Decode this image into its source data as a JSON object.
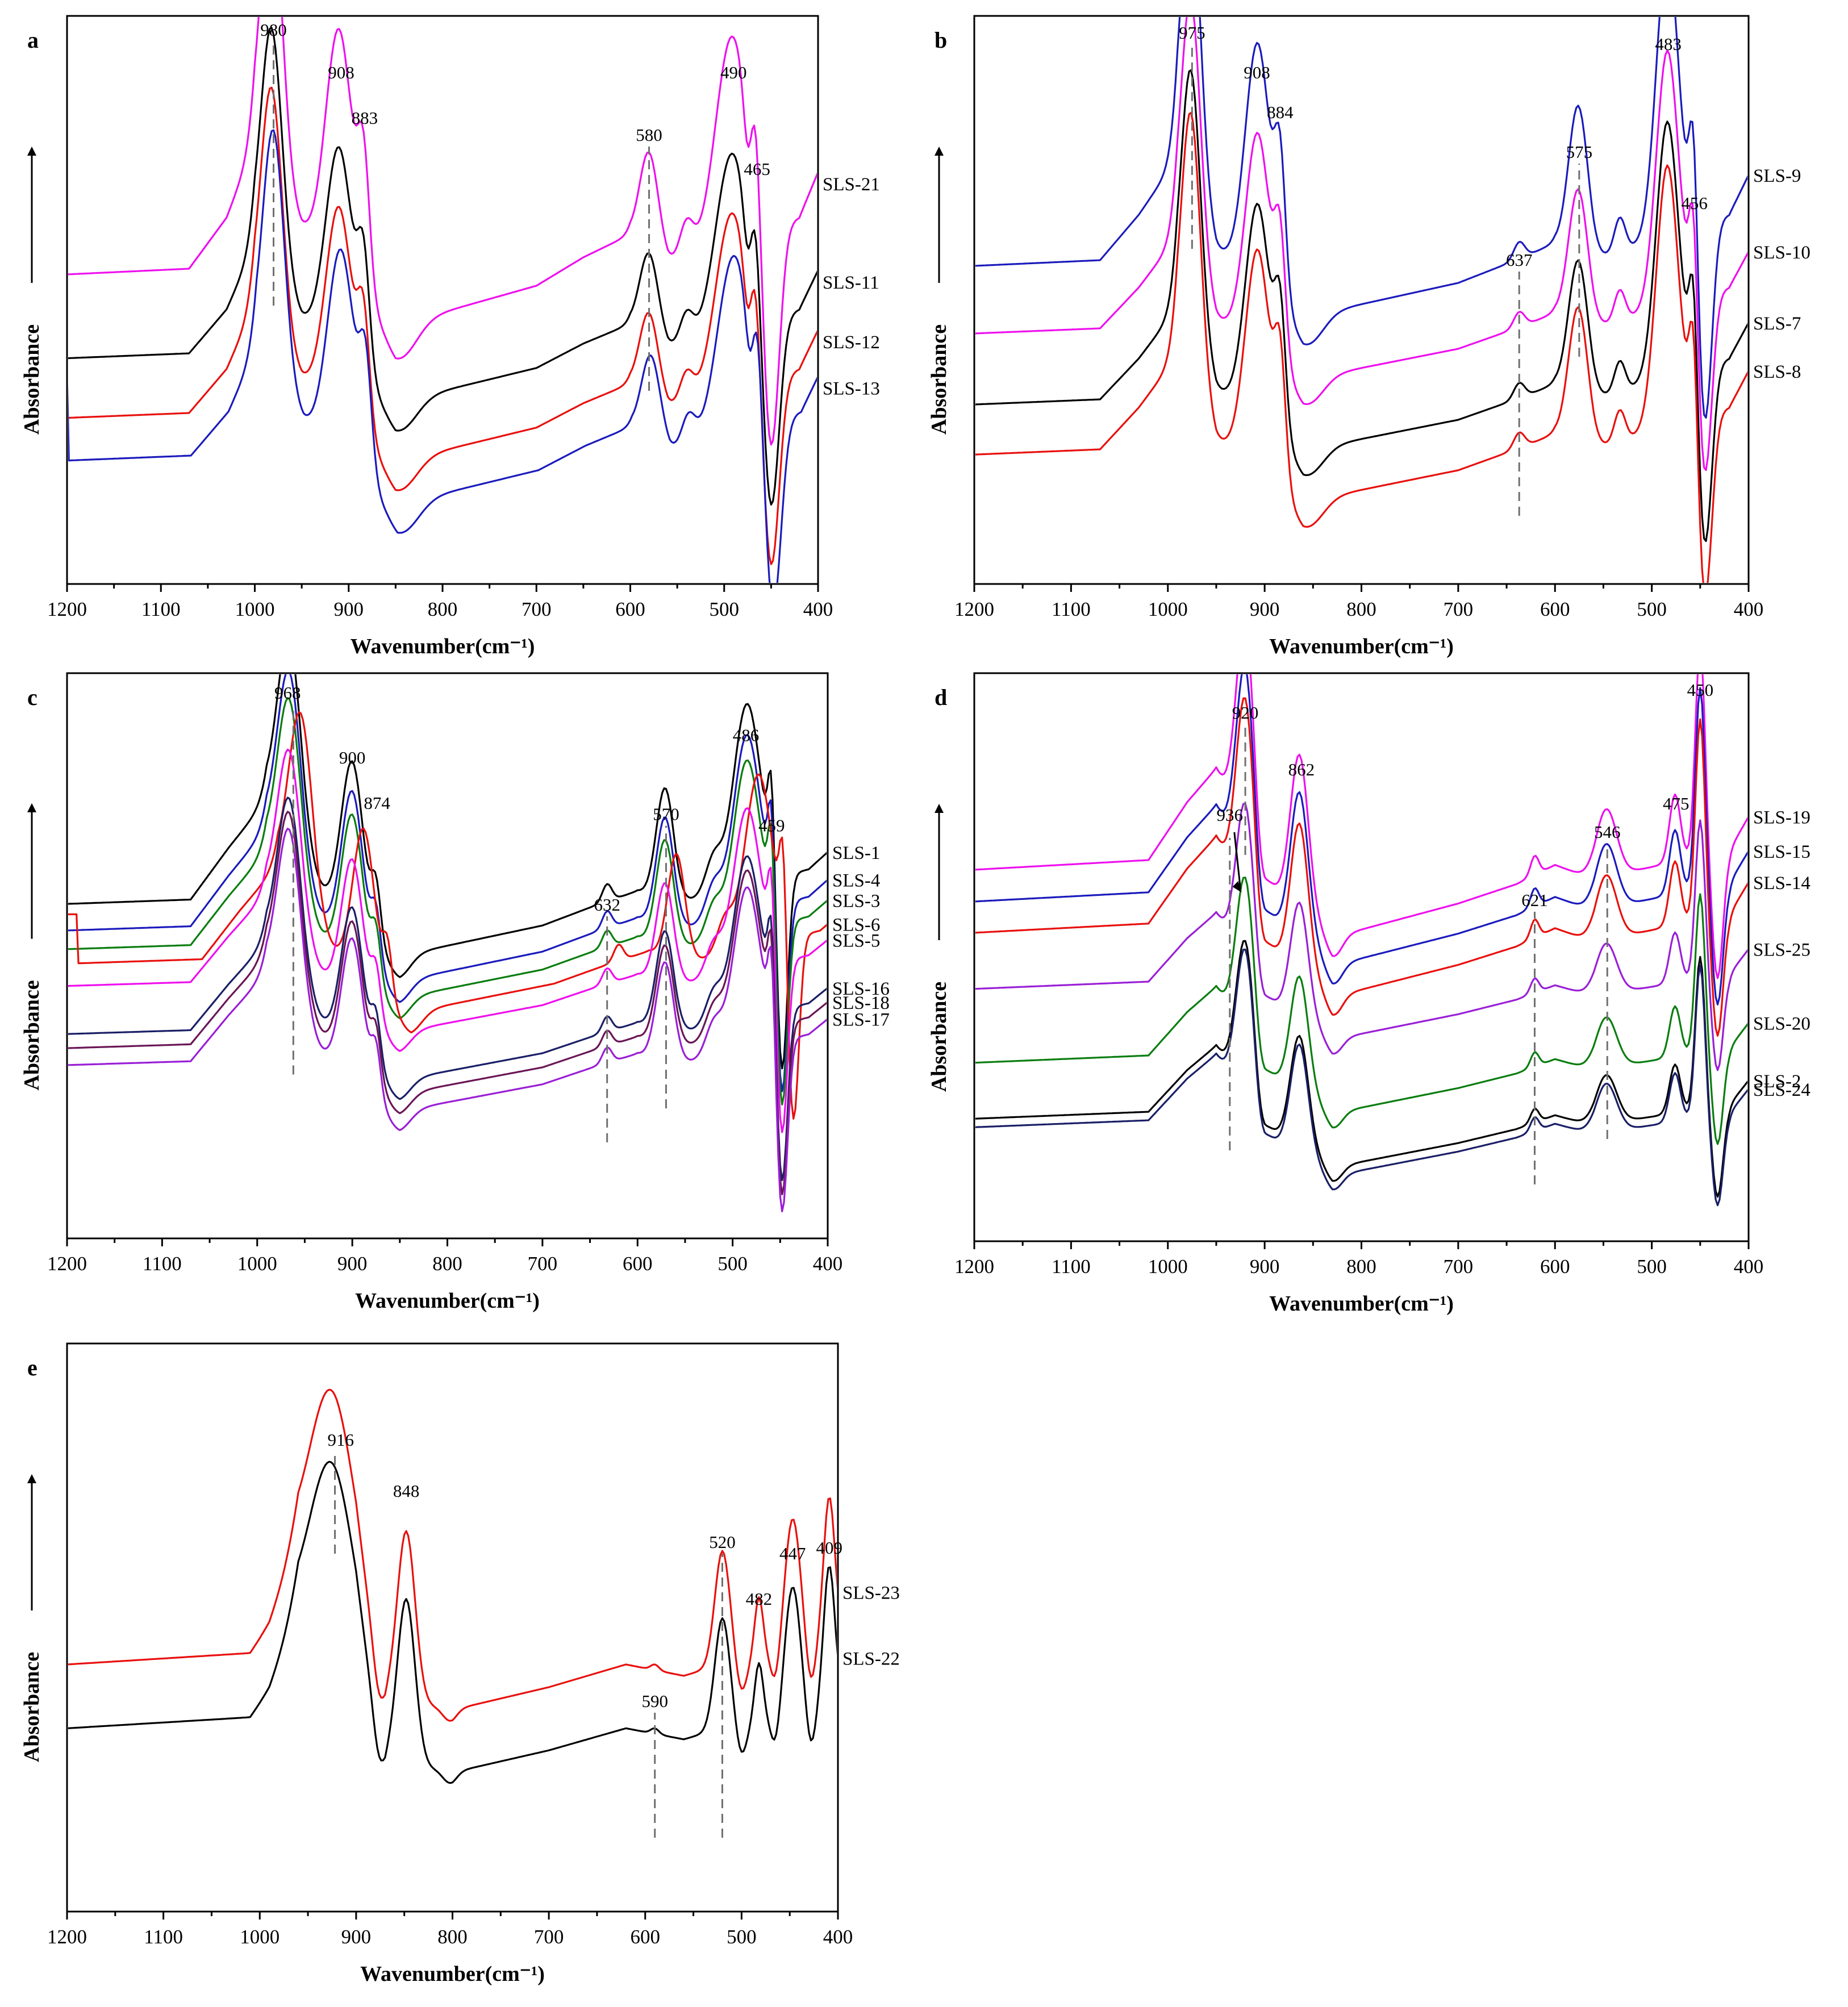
{
  "colors": {
    "black": "#000000",
    "red": "#e8100e",
    "blue": "#1b1bbd",
    "magenta": "#ee10ee",
    "green": "#0a7d10",
    "purple": "#9a1fd6",
    "navy": "#1a1f66",
    "darkpurple": "#6a1656",
    "guide": "#6f6f6f"
  },
  "chart_data": [
    {
      "id": "a",
      "type": "line",
      "title": "a",
      "xlabel": "Wavenumber(cm⁻¹)",
      "ylabel": "Absorbance",
      "xlim": [
        1200,
        400
      ],
      "xticks": [
        1200,
        1100,
        1000,
        900,
        800,
        700,
        600,
        500,
        400
      ],
      "peak_labels": [
        980,
        908,
        883,
        580,
        490,
        465
      ],
      "guides": [
        980,
        580
      ],
      "series": [
        {
          "name": "SLS-21",
          "color": "magenta",
          "offset": 0.455,
          "scale": 1.0,
          "shift": 0
        },
        {
          "name": "SLS-11",
          "color": "black",
          "offset": 0.32,
          "scale": 0.86,
          "shift": 0
        },
        {
          "name": "SLS-12",
          "color": "red",
          "offset": 0.215,
          "scale": 0.86,
          "shift": 0
        },
        {
          "name": "SLS-13",
          "color": "blue",
          "offset": 0.14,
          "scale": 0.86,
          "shift": -2
        }
      ]
    },
    {
      "id": "b",
      "type": "line",
      "title": "b",
      "xlabel": "Wavenumber(cm⁻¹)",
      "ylabel": "Absorbance",
      "xlim": [
        1200,
        400
      ],
      "xticks": [
        1200,
        1100,
        1000,
        900,
        800,
        700,
        600,
        500,
        400
      ],
      "peak_labels": [
        975,
        908,
        884,
        637,
        575,
        483,
        456
      ],
      "guides": [
        975,
        637,
        575
      ],
      "series": [
        {
          "name": "SLS-9",
          "color": "blue",
          "offset": 0.47,
          "scale": 1.0,
          "shift": 0
        },
        {
          "name": "SLS-10",
          "color": "magenta",
          "offset": 0.36,
          "scale": 0.9,
          "shift": 0
        },
        {
          "name": "SLS-7",
          "color": "black",
          "offset": 0.235,
          "scale": 0.9,
          "shift": 0
        },
        {
          "name": "SLS-8",
          "color": "red",
          "offset": 0.145,
          "scale": 0.92,
          "shift": 0
        }
      ]
    },
    {
      "id": "c",
      "type": "line",
      "title": "c",
      "xlabel": "Wavenumber(cm⁻¹)",
      "ylabel": "Absorbance",
      "xlim": [
        1200,
        400
      ],
      "xticks": [
        1200,
        1100,
        1000,
        900,
        800,
        700,
        600,
        500,
        400
      ],
      "peak_labels": [
        968,
        900,
        874,
        632,
        570,
        486,
        459
      ],
      "guides": [
        962,
        632,
        570
      ],
      "series": [
        {
          "name": "SLS-1",
          "color": "black",
          "offset": 0.5,
          "scale": 0.9,
          "shift": 0
        },
        {
          "name": "SLS-4",
          "color": "blue",
          "offset": 0.455,
          "scale": 0.88,
          "shift": 0
        },
        {
          "name": "SLS-3",
          "color": "green",
          "offset": 0.425,
          "scale": 0.85,
          "shift": 0
        },
        {
          "name": "SLS-6",
          "color": "red",
          "offset": 0.4,
          "scale": 0.85,
          "shift": -12
        },
        {
          "name": "SLS-5",
          "color": "magenta",
          "offset": 0.365,
          "scale": 0.8,
          "shift": 0
        },
        {
          "name": "SLS-16",
          "color": "navy",
          "offset": 0.28,
          "scale": 0.8,
          "shift": 0
        },
        {
          "name": "SLS-18",
          "color": "darkpurple",
          "offset": 0.255,
          "scale": 0.8,
          "shift": 0
        },
        {
          "name": "SLS-17",
          "color": "purple",
          "offset": 0.225,
          "scale": 0.8,
          "shift": 0
        }
      ]
    },
    {
      "id": "d",
      "type": "line",
      "title": "d",
      "xlabel": "Wavenumber(cm⁻¹)",
      "ylabel": "Absorbance",
      "xlim": [
        1200,
        400
      ],
      "xticks": [
        1200,
        1100,
        1000,
        900,
        800,
        700,
        600,
        500,
        400
      ],
      "peak_labels": [
        936,
        920,
        862,
        621,
        546,
        475,
        450
      ],
      "guides": [
        936,
        920,
        621,
        546
      ],
      "series": [
        {
          "name": "SLS-19",
          "color": "magenta",
          "offset": 0.535,
          "scale": 1.0,
          "shift": 0
        },
        {
          "name": "SLS-15",
          "color": "blue",
          "offset": 0.485,
          "scale": 0.95,
          "shift": 0
        },
        {
          "name": "SLS-14",
          "color": "red",
          "offset": 0.43,
          "scale": 0.95,
          "shift": 0
        },
        {
          "name": "SLS-25",
          "color": "purple",
          "offset": 0.355,
          "scale": 0.75,
          "shift": 0
        },
        {
          "name": "SLS-20",
          "color": "green",
          "offset": 0.225,
          "scale": 0.75,
          "shift": 0
        },
        {
          "name": "SLS-2",
          "color": "black",
          "offset": 0.13,
          "scale": 0.72,
          "shift": 0
        },
        {
          "name": "SLS-24",
          "color": "navy",
          "offset": 0.115,
          "scale": 0.72,
          "shift": 0
        }
      ]
    },
    {
      "id": "e",
      "type": "line",
      "title": "e",
      "xlabel": "Wavenumber(cm⁻¹)",
      "ylabel": "Absorbance",
      "xlim": [
        1200,
        400
      ],
      "xticks": [
        1200,
        1100,
        1000,
        900,
        800,
        700,
        600,
        500,
        400
      ],
      "peak_labels": [
        916,
        848,
        590,
        520,
        482,
        447,
        409
      ],
      "guides": [
        922,
        590,
        520
      ],
      "series": [
        {
          "name": "SLS-23",
          "color": "red",
          "offset": 0.355,
          "scale": 1.0,
          "shift": 0
        },
        {
          "name": "SLS-22",
          "color": "black",
          "offset": 0.245,
          "scale": 0.97,
          "shift": 0
        }
      ]
    }
  ]
}
